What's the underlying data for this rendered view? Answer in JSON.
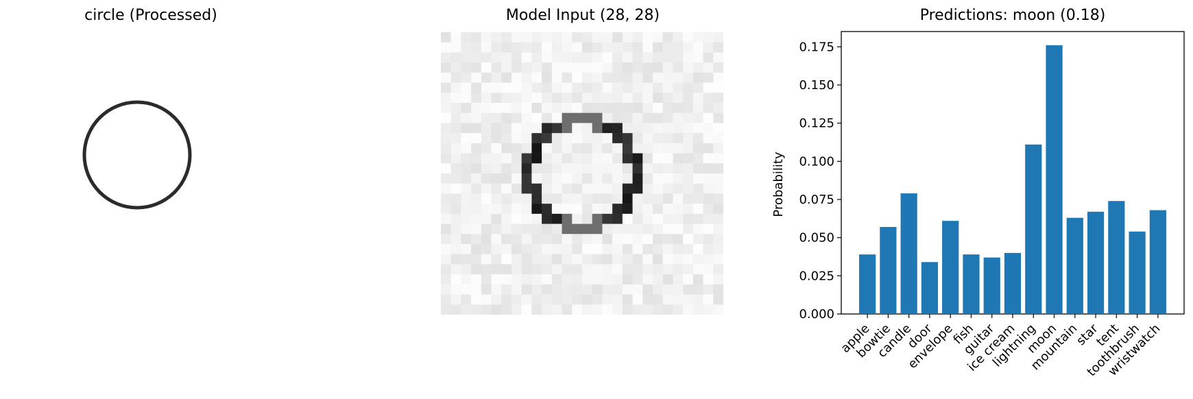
{
  "panels": {
    "processed": {
      "title": "circle (Processed)"
    },
    "model_input": {
      "title": "Model Input (28, 28)",
      "grid_rows": 28,
      "grid_cols": 28
    },
    "predictions": {
      "title": "Predictions: moon (0.18)"
    }
  },
  "chart_data": {
    "type": "bar",
    "title": "Predictions: moon (0.18)",
    "xlabel": "",
    "ylabel": "Probability",
    "categories": [
      "apple",
      "bowtie",
      "candle",
      "door",
      "envelope",
      "fish",
      "guitar",
      "ice cream",
      "lightning",
      "moon",
      "mountain",
      "star",
      "tent",
      "toothbrush",
      "wristwatch"
    ],
    "values": [
      0.039,
      0.057,
      0.079,
      0.034,
      0.061,
      0.039,
      0.037,
      0.04,
      0.111,
      0.176,
      0.063,
      0.067,
      0.074,
      0.054,
      0.068
    ],
    "yticks": [
      "0.000",
      "0.025",
      "0.050",
      "0.075",
      "0.100",
      "0.125",
      "0.150",
      "0.175"
    ],
    "ylim": [
      0,
      0.185
    ],
    "bar_color": "#1f77b4",
    "grid": false
  }
}
